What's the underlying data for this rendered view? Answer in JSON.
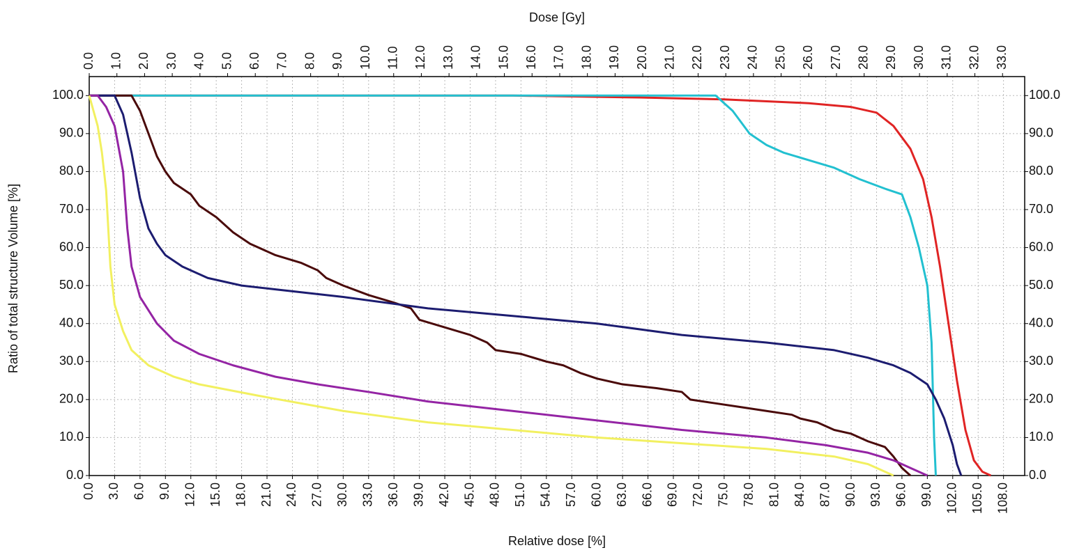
{
  "chart_data": {
    "type": "line",
    "title": "Dose [Gy]",
    "xlabel": "Relative dose [%]",
    "ylabel": "Ratio of total structure Volume [%]",
    "xlim": [
      0,
      110.5
    ],
    "xticks": [
      {
        "value": 0,
        "label": "0.0"
      },
      {
        "value": 3,
        "label": "3.0"
      },
      {
        "value": 6,
        "label": "6.0"
      },
      {
        "value": 9,
        "label": "9.0"
      },
      {
        "value": 12,
        "label": "12.0"
      },
      {
        "value": 15,
        "label": "15.0"
      },
      {
        "value": 18,
        "label": "18.0"
      },
      {
        "value": 21,
        "label": "21.0"
      },
      {
        "value": 24,
        "label": "24.0"
      },
      {
        "value": 27,
        "label": "27.0"
      },
      {
        "value": 30,
        "label": "30.0"
      },
      {
        "value": 33,
        "label": "33.0"
      },
      {
        "value": 36,
        "label": "36.0"
      },
      {
        "value": 39,
        "label": "39.0"
      },
      {
        "value": 42,
        "label": "42.0"
      },
      {
        "value": 45,
        "label": "45.0"
      },
      {
        "value": 48,
        "label": "48.0"
      },
      {
        "value": 51,
        "label": "51.0"
      },
      {
        "value": 54,
        "label": "54.0"
      },
      {
        "value": 57,
        "label": "57.0"
      },
      {
        "value": 60,
        "label": "60.0"
      },
      {
        "value": 63,
        "label": "63.0"
      },
      {
        "value": 66,
        "label": "66.0"
      },
      {
        "value": 69,
        "label": "69.0"
      },
      {
        "value": 72,
        "label": "72.0"
      },
      {
        "value": 75,
        "label": "75.0"
      },
      {
        "value": 78,
        "label": "78.0"
      },
      {
        "value": 81,
        "label": "81.0"
      },
      {
        "value": 84,
        "label": "84.0"
      },
      {
        "value": 87,
        "label": "87.0"
      },
      {
        "value": 90,
        "label": "90.0"
      },
      {
        "value": 93,
        "label": "93.0"
      },
      {
        "value": 96,
        "label": "96.0"
      },
      {
        "value": 99,
        "label": "99.0"
      },
      {
        "value": 102,
        "label": "102.0"
      },
      {
        "value": 105,
        "label": "105.0"
      },
      {
        "value": 108,
        "label": "108.0"
      }
    ],
    "x2lim": [
      0,
      33.8
    ],
    "x2ticks": [
      {
        "value": 0,
        "label": "0.0"
      },
      {
        "value": 1,
        "label": "1.0"
      },
      {
        "value": 2,
        "label": "2.0"
      },
      {
        "value": 3,
        "label": "3.0"
      },
      {
        "value": 4,
        "label": "4.0"
      },
      {
        "value": 5,
        "label": "5.0"
      },
      {
        "value": 6,
        "label": "6.0"
      },
      {
        "value": 7,
        "label": "7.0"
      },
      {
        "value": 8,
        "label": "8.0"
      },
      {
        "value": 9,
        "label": "9.0"
      },
      {
        "value": 10,
        "label": "10.0"
      },
      {
        "value": 11,
        "label": "11.0"
      },
      {
        "value": 12,
        "label": "12.0"
      },
      {
        "value": 13,
        "label": "13.0"
      },
      {
        "value": 14,
        "label": "14.0"
      },
      {
        "value": 15,
        "label": "15.0"
      },
      {
        "value": 16,
        "label": "16.0"
      },
      {
        "value": 17,
        "label": "17.0"
      },
      {
        "value": 18,
        "label": "18.0"
      },
      {
        "value": 19,
        "label": "19.0"
      },
      {
        "value": 20,
        "label": "20.0"
      },
      {
        "value": 21,
        "label": "21.0"
      },
      {
        "value": 22,
        "label": "22.0"
      },
      {
        "value": 23,
        "label": "23.0"
      },
      {
        "value": 24,
        "label": "24.0"
      },
      {
        "value": 25,
        "label": "25.0"
      },
      {
        "value": 26,
        "label": "26.0"
      },
      {
        "value": 27,
        "label": "27.0"
      },
      {
        "value": 28,
        "label": "28.0"
      },
      {
        "value": 29,
        "label": "29.0"
      },
      {
        "value": 30,
        "label": "30.0"
      },
      {
        "value": 31,
        "label": "31.0"
      },
      {
        "value": 32,
        "label": "32.0"
      },
      {
        "value": 33,
        "label": "33.0"
      }
    ],
    "ylim": [
      0,
      105
    ],
    "yticks": [
      {
        "value": 0,
        "label": "0.0"
      },
      {
        "value": 10,
        "label": "10.0"
      },
      {
        "value": 20,
        "label": "20.0"
      },
      {
        "value": 30,
        "label": "30.0"
      },
      {
        "value": 40,
        "label": "40.0"
      },
      {
        "value": 50,
        "label": "50.0"
      },
      {
        "value": 60,
        "label": "60.0"
      },
      {
        "value": 70,
        "label": "70.0"
      },
      {
        "value": 80,
        "label": "80.0"
      },
      {
        "value": 90,
        "label": "90.0"
      },
      {
        "value": 100,
        "label": "100.0"
      }
    ],
    "y2lim": [
      0,
      105
    ],
    "y2ticks": [
      {
        "value": 0,
        "label": "0.0"
      },
      {
        "value": 10,
        "label": "10.0"
      },
      {
        "value": 20,
        "label": "20.0"
      },
      {
        "value": 30,
        "label": "30.0"
      },
      {
        "value": 40,
        "label": "40.0"
      },
      {
        "value": 50,
        "label": "50.0"
      },
      {
        "value": 60,
        "label": "60.0"
      },
      {
        "value": 70,
        "label": "70.0"
      },
      {
        "value": 80,
        "label": "80.0"
      },
      {
        "value": 90,
        "label": "90.0"
      },
      {
        "value": 100,
        "label": "100.0"
      }
    ],
    "grid": true,
    "series": [
      {
        "color": "#e02424",
        "x": [
          0,
          50,
          65,
          75,
          85,
          90,
          93,
          95,
          97,
          98.5,
          99.5,
          100.5,
          101.5,
          102.5,
          103.5,
          104.5,
          105.5,
          106.5
        ],
        "values": [
          100,
          100,
          99.5,
          99,
          98,
          97,
          95.5,
          92,
          86,
          78,
          68,
          55,
          40,
          25,
          12,
          4,
          1,
          0
        ]
      },
      {
        "color": "#22c0d0",
        "x": [
          0,
          74,
          75,
          76,
          77,
          78,
          80,
          82,
          85,
          88,
          91,
          94,
          96,
          97,
          98,
          99,
          99.5,
          99.8,
          100
        ],
        "values": [
          100,
          100,
          98,
          96,
          93,
          90,
          87,
          85,
          83,
          81,
          78,
          75.5,
          74,
          68,
          60,
          50,
          35,
          10,
          0
        ]
      },
      {
        "color": "#4a0a0a",
        "x": [
          0,
          5,
          6,
          7,
          8,
          9,
          10,
          12,
          13,
          15,
          17,
          19,
          22,
          25,
          27,
          28,
          30,
          33,
          36,
          38,
          39,
          42,
          45,
          47,
          48,
          51,
          54,
          56,
          58,
          60,
          63,
          67,
          70,
          71,
          74,
          77,
          80,
          83,
          84,
          86,
          88,
          90,
          92,
          94,
          95,
          96,
          97
        ],
        "values": [
          100,
          100,
          96,
          90,
          84,
          80,
          77,
          74,
          71,
          68,
          64,
          61,
          58,
          56,
          54,
          52,
          50,
          47.5,
          45.5,
          44,
          41,
          39,
          37,
          35,
          33,
          32,
          30,
          29,
          27,
          25.5,
          24,
          23,
          22,
          20,
          19,
          18,
          17,
          16,
          15,
          14,
          12,
          11,
          9,
          7.5,
          5,
          2,
          0
        ]
      },
      {
        "color": "#1c1c70",
        "x": [
          0,
          3,
          4,
          5,
          6,
          7,
          8,
          9,
          11,
          14,
          18,
          22,
          30,
          40,
          50,
          60,
          70,
          80,
          88,
          92,
          95,
          97,
          99,
          100,
          101,
          102,
          102.5,
          103
        ],
        "values": [
          100,
          100,
          95,
          85,
          73,
          65,
          61,
          58,
          55,
          52,
          50,
          49,
          47,
          44,
          42,
          40,
          37,
          35,
          33,
          31,
          29,
          27,
          24,
          20,
          15,
          8,
          3,
          0
        ]
      },
      {
        "color": "#9424a4",
        "x": [
          0,
          1,
          2,
          3,
          4,
          4.5,
          5,
          6,
          8,
          10,
          13,
          17,
          22,
          27,
          33,
          40,
          50,
          60,
          70,
          80,
          87,
          92,
          95,
          97,
          99
        ],
        "values": [
          100,
          100,
          97,
          92,
          80,
          65,
          55,
          47,
          40,
          35.5,
          32,
          29,
          26,
          24,
          22,
          19.5,
          17,
          14.5,
          12,
          10,
          8,
          6,
          4,
          2,
          0
        ]
      },
      {
        "color": "#f2f060",
        "x": [
          0,
          1,
          1.5,
          2,
          2.5,
          3,
          4,
          5,
          7,
          10,
          13,
          20,
          30,
          40,
          50,
          60,
          70,
          80,
          88,
          92,
          94,
          95
        ],
        "values": [
          100,
          92,
          85,
          75,
          55,
          45,
          38,
          33,
          29,
          26,
          24,
          21,
          17,
          14,
          12,
          10,
          8.5,
          7,
          5,
          3,
          1,
          0
        ]
      }
    ]
  }
}
